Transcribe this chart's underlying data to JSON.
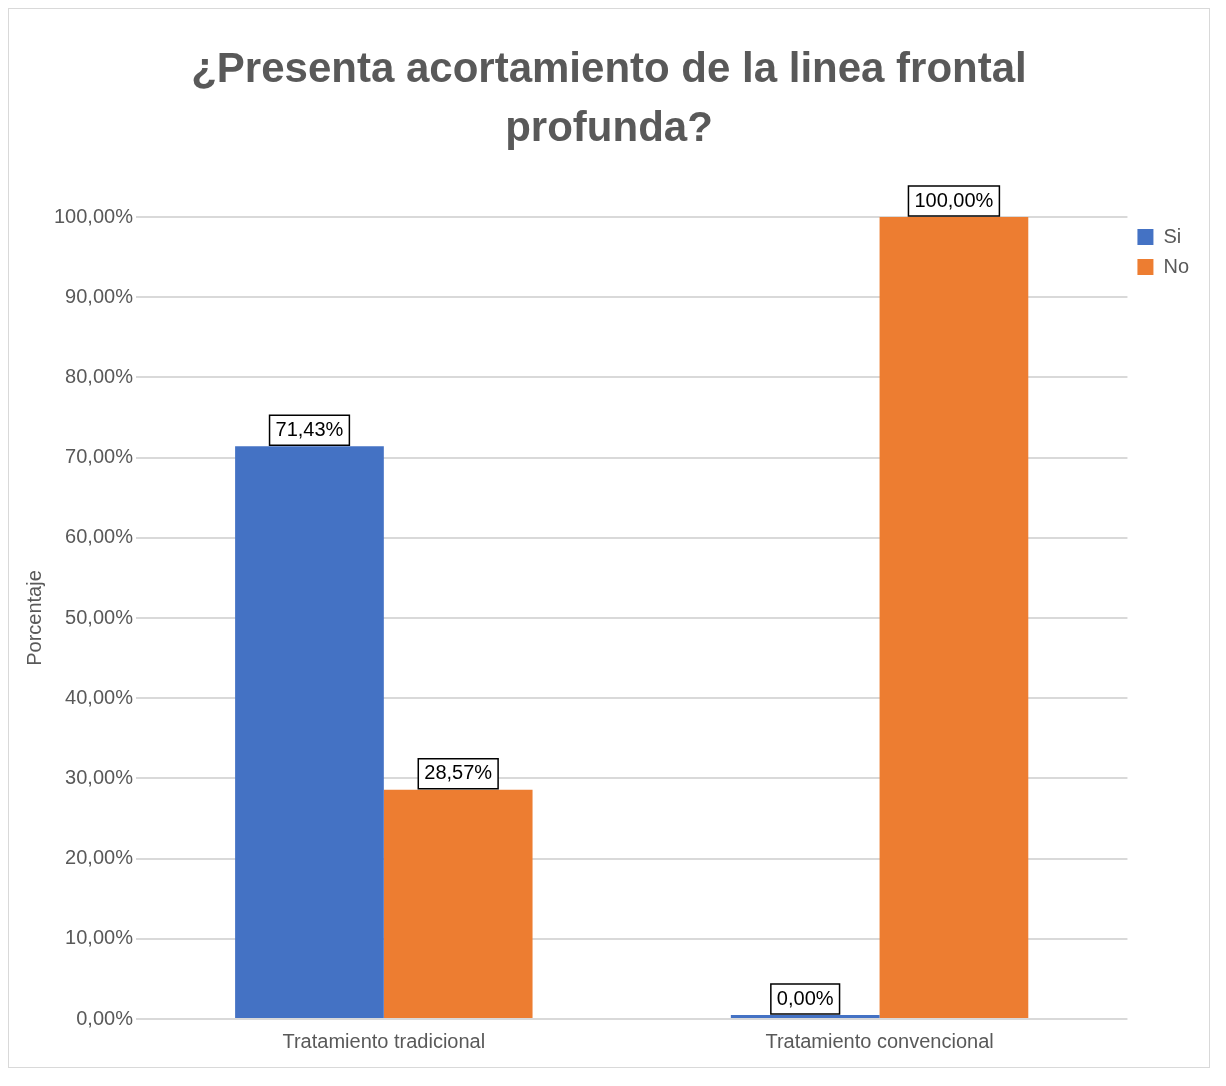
{
  "chart_data": {
    "type": "bar",
    "title": "¿Presenta acortamiento de la linea frontal profunda?",
    "ylabel": "Porcentaje",
    "categories": [
      "Tratamiento tradicional",
      "Tratamiento convencional"
    ],
    "series": [
      {
        "name": "Si",
        "color": "#4472c4",
        "values": [
          71.43,
          0
        ],
        "value_labels": [
          "71,43%",
          "0,00%"
        ]
      },
      {
        "name": "No",
        "color": "#ed7d31",
        "values": [
          28.57,
          100
        ],
        "value_labels": [
          "28,57%",
          "100,00%"
        ]
      }
    ],
    "ylim": [
      0,
      100
    ],
    "yticks": [
      {
        "value": 0,
        "label": "0,00%"
      },
      {
        "value": 10,
        "label": "10,00%"
      },
      {
        "value": 20,
        "label": "20,00%"
      },
      {
        "value": 30,
        "label": "30,00%"
      },
      {
        "value": 40,
        "label": "40,00%"
      },
      {
        "value": 50,
        "label": "50,00%"
      },
      {
        "value": 60,
        "label": "60,00%"
      },
      {
        "value": 70,
        "label": "70,00%"
      },
      {
        "value": 80,
        "label": "80,00%"
      },
      {
        "value": 90,
        "label": "90,00%"
      },
      {
        "value": 100,
        "label": "100,00%"
      }
    ],
    "grid": "y",
    "legend": "top right"
  }
}
